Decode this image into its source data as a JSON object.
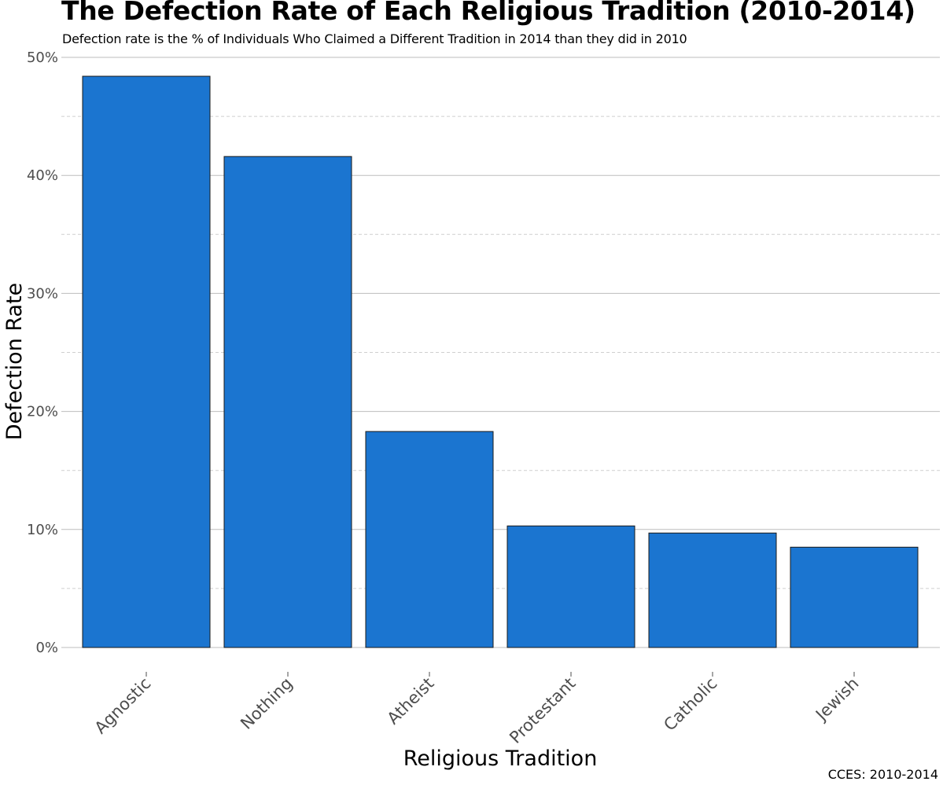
{
  "chart_data": {
    "type": "bar",
    "title": "The Defection Rate of Each Religious Tradition (2010-2014)",
    "subtitle": "Defection rate is the % of Individuals Who Claimed a Different Tradition in 2014 than they did in 2010",
    "xlabel": "Religious Tradition",
    "ylabel": "Defection Rate",
    "caption": "CCES: 2010-2014",
    "categories": [
      "Agnostic",
      "Nothing",
      "Atheist",
      "Protestant",
      "Catholic",
      "Jewish"
    ],
    "values": [
      48.4,
      41.6,
      18.3,
      10.3,
      9.7,
      8.5
    ],
    "value_unit": "%",
    "ylim": [
      0,
      50
    ],
    "yticks": [
      0,
      10,
      20,
      30,
      40,
      50
    ],
    "ytick_labels": [
      "0%",
      "10%",
      "20%",
      "30%",
      "40%",
      "50%"
    ],
    "grid": true,
    "legend": "none",
    "colors": {
      "bar_fill": "#1b75d0",
      "bar_outline": "#1a1a1a",
      "grid_major": "#bdbdbd",
      "grid_minor": "#cfcfcf",
      "tick_text": "#4d4d4d"
    }
  }
}
